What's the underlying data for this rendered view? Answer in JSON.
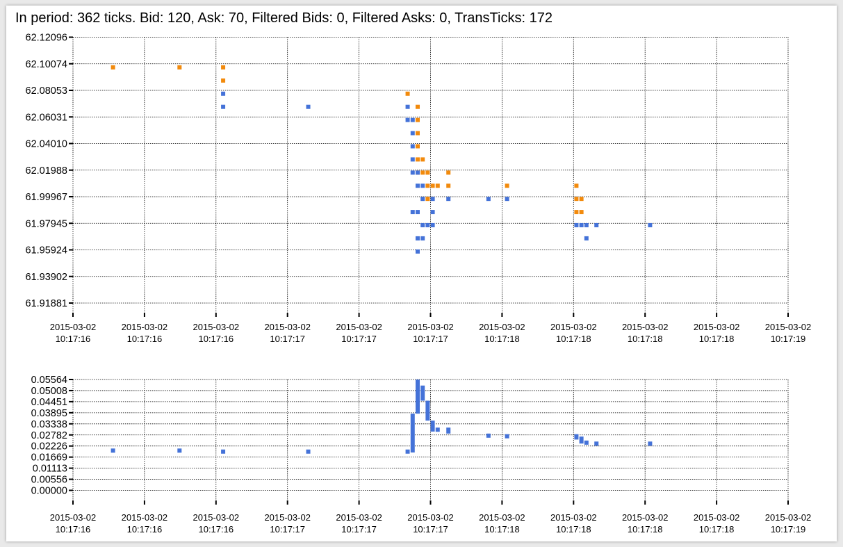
{
  "summary": "In period: 362 ticks. Bid: 120, Ask: 70, Filtered Bids: 0, Filtered Asks: 0, TransTicks: 172",
  "colors": {
    "bid": "#4472d8",
    "ask": "#f28a0c",
    "grid": "#000000",
    "background": "#ffffff"
  },
  "chart_data": [
    {
      "type": "scatter",
      "grid": true,
      "x_tick_labels": [
        [
          "2015-03-02",
          "10:17:16"
        ],
        [
          "2015-03-02",
          "10:17:16"
        ],
        [
          "2015-03-02",
          "10:17:16"
        ],
        [
          "2015-03-02",
          "10:17:17"
        ],
        [
          "2015-03-02",
          "10:17:17"
        ],
        [
          "2015-03-02",
          "10:17:17"
        ],
        [
          "2015-03-02",
          "10:17:18"
        ],
        [
          "2015-03-02",
          "10:17:18"
        ],
        [
          "2015-03-02",
          "10:17:18"
        ],
        [
          "2015-03-02",
          "10:17:18"
        ],
        [
          "2015-03-02",
          "10:17:19"
        ]
      ],
      "xlim": [
        0,
        10
      ],
      "ylim": [
        61.91881,
        62.12096
      ],
      "y_ticks": [
        "62.12096",
        "62.10074",
        "62.08053",
        "62.06031",
        "62.04010",
        "62.01988",
        "61.99967",
        "61.97945",
        "61.95924",
        "61.93902",
        "61.91881"
      ],
      "series": [
        {
          "color_key": "ask",
          "points": [
            [
              0.56,
              62.098
            ],
            [
              1.49,
              62.098
            ],
            [
              2.1,
              62.098
            ],
            [
              2.1,
              62.088
            ],
            [
              4.68,
              62.078
            ],
            [
              4.82,
              62.068
            ],
            [
              4.82,
              62.058
            ],
            [
              4.82,
              62.048
            ],
            [
              4.82,
              62.038
            ],
            [
              4.82,
              62.028
            ],
            [
              4.89,
              62.028
            ],
            [
              4.82,
              62.018
            ],
            [
              4.89,
              62.018
            ],
            [
              4.96,
              62.018
            ],
            [
              5.25,
              62.018
            ],
            [
              4.96,
              62.008
            ],
            [
              5.03,
              62.008
            ],
            [
              5.1,
              62.008
            ],
            [
              5.25,
              62.008
            ],
            [
              6.07,
              62.008
            ],
            [
              7.04,
              62.008
            ],
            [
              4.96,
              61.998
            ],
            [
              7.04,
              61.998
            ],
            [
              7.11,
              61.998
            ],
            [
              7.04,
              61.988
            ],
            [
              7.11,
              61.988
            ]
          ]
        },
        {
          "color_key": "bid",
          "points": [
            [
              2.1,
              62.078
            ],
            [
              2.1,
              62.068
            ],
            [
              3.29,
              62.068
            ],
            [
              4.68,
              62.068
            ],
            [
              4.68,
              62.058
            ],
            [
              4.75,
              62.058
            ],
            [
              4.75,
              62.048
            ],
            [
              4.75,
              62.038
            ],
            [
              4.75,
              62.028
            ],
            [
              4.75,
              62.018
            ],
            [
              4.82,
              62.018
            ],
            [
              4.82,
              62.008
            ],
            [
              4.89,
              62.008
            ],
            [
              4.89,
              61.998
            ],
            [
              5.03,
              61.998
            ],
            [
              5.25,
              61.998
            ],
            [
              5.81,
              61.998
            ],
            [
              6.07,
              61.998
            ],
            [
              4.75,
              61.988
            ],
            [
              4.82,
              61.988
            ],
            [
              5.03,
              61.988
            ],
            [
              4.89,
              61.978
            ],
            [
              4.96,
              61.978
            ],
            [
              5.03,
              61.978
            ],
            [
              7.04,
              61.978
            ],
            [
              7.11,
              61.978
            ],
            [
              7.18,
              61.978
            ],
            [
              7.32,
              61.978
            ],
            [
              8.07,
              61.978
            ],
            [
              4.82,
              61.968
            ],
            [
              4.89,
              61.968
            ],
            [
              7.18,
              61.968
            ],
            [
              4.82,
              61.958
            ]
          ]
        }
      ]
    },
    {
      "type": "bar",
      "grid": true,
      "x_tick_labels": [
        [
          "2015-03-02",
          "10:17:16"
        ],
        [
          "2015-03-02",
          "10:17:16"
        ],
        [
          "2015-03-02",
          "10:17:16"
        ],
        [
          "2015-03-02",
          "10:17:17"
        ],
        [
          "2015-03-02",
          "10:17:17"
        ],
        [
          "2015-03-02",
          "10:17:17"
        ],
        [
          "2015-03-02",
          "10:17:18"
        ],
        [
          "2015-03-02",
          "10:17:18"
        ],
        [
          "2015-03-02",
          "10:17:18"
        ],
        [
          "2015-03-02",
          "10:17:18"
        ],
        [
          "2015-03-02",
          "10:17:19"
        ]
      ],
      "xlim": [
        0,
        10
      ],
      "ylim": [
        0,
        0.05564
      ],
      "y_ticks": [
        "0.05564",
        "0.05008",
        "0.04451",
        "0.03895",
        "0.03338",
        "0.02782",
        "0.02226",
        "0.01669",
        "0.01113",
        "0.00556",
        "0.00000"
      ],
      "series": [
        {
          "color_key": "bid",
          "ranges": [
            [
              0.56,
              0.0195,
              0.021
            ],
            [
              1.49,
              0.0195,
              0.021
            ],
            [
              2.1,
              0.019,
              0.0205
            ],
            [
              3.29,
              0.019,
              0.0205
            ],
            [
              4.68,
              0.019,
              0.0205
            ],
            [
              4.75,
              0.019,
              0.0385
            ],
            [
              4.82,
              0.042,
              0.0556
            ],
            [
              4.82,
              0.0385,
              0.043
            ],
            [
              4.89,
              0.045,
              0.0526
            ],
            [
              4.96,
              0.035,
              0.045
            ],
            [
              5.03,
              0.0295,
              0.035
            ],
            [
              5.1,
              0.0295,
              0.0315
            ],
            [
              5.25,
              0.0285,
              0.0315
            ],
            [
              5.81,
              0.027,
              0.0285
            ],
            [
              6.07,
              0.0265,
              0.0282
            ],
            [
              7.04,
              0.0255,
              0.0282
            ],
            [
              7.11,
              0.0235,
              0.027
            ],
            [
              7.18,
              0.023,
              0.025
            ],
            [
              7.32,
              0.023,
              0.0245
            ],
            [
              8.07,
              0.023,
              0.0245
            ]
          ]
        }
      ]
    }
  ]
}
